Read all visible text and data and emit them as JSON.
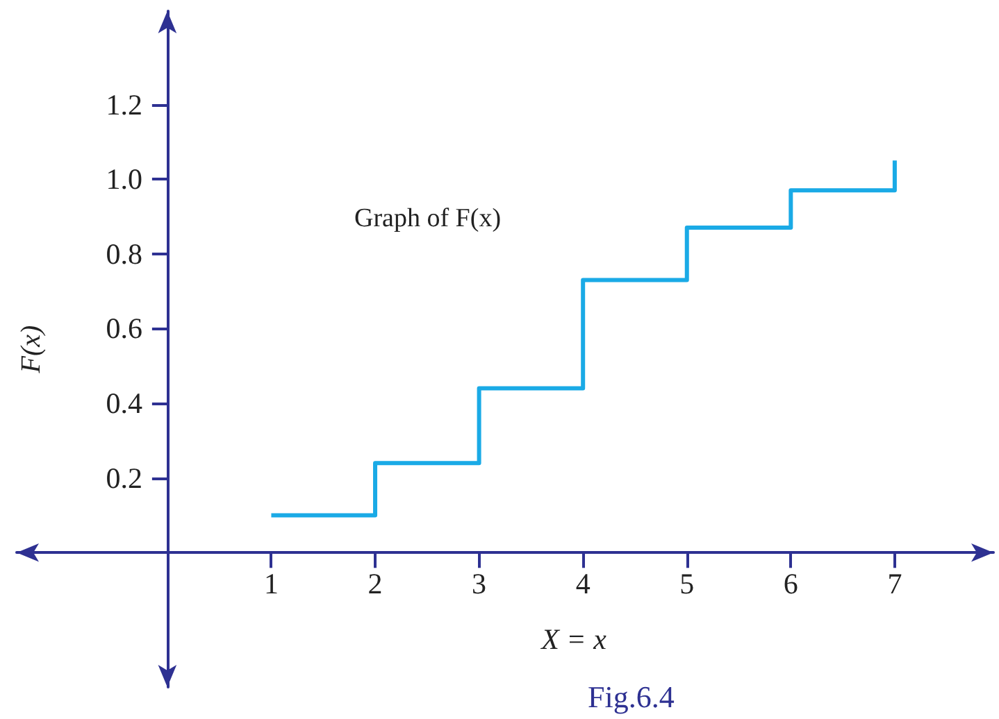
{
  "chart_data": {
    "type": "step",
    "title": "Fig.6.4",
    "xlabel": "X = x",
    "ylabel": "F(x)",
    "annotations": [
      "Graph of F(x)"
    ],
    "x": [
      1,
      2,
      3,
      4,
      5,
      6,
      7
    ],
    "series": [
      {
        "color": "#1aaae6",
        "values": [
          0.1,
          0.24,
          0.44,
          0.73,
          0.87,
          0.97,
          1.05
        ]
      }
    ],
    "xlim": [
      -1.45,
      7.95
    ],
    "ylim": [
      -0.36,
      1.45
    ],
    "xticks": [
      1,
      2,
      3,
      4,
      5,
      6,
      7
    ],
    "yticks": [
      {
        "value": 0.2,
        "label": "0.2"
      },
      {
        "value": 0.4,
        "label": "0.4"
      },
      {
        "value": 0.6,
        "label": "0.6"
      },
      {
        "value": 0.8,
        "label": "0.8"
      },
      {
        "value": 1,
        "label": "1.0"
      },
      {
        "value": 1.2,
        "label": "1.2"
      }
    ],
    "grid": false,
    "marker": "none",
    "line_style": "solid"
  }
}
